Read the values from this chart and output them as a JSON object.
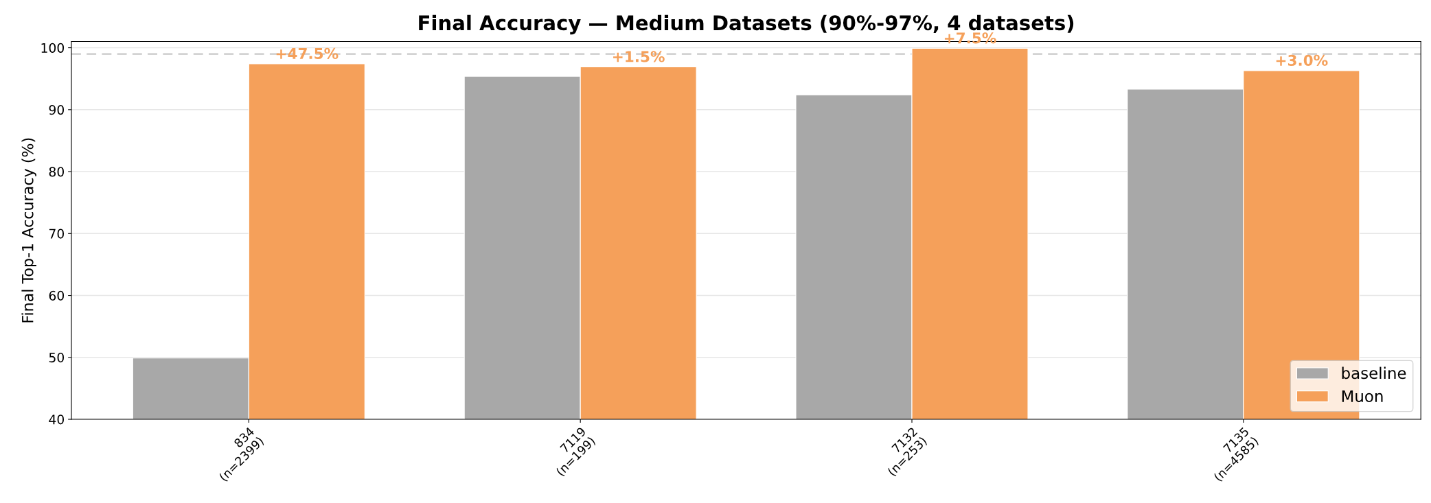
{
  "chart_data": {
    "type": "bar",
    "title": "Final Accuracy — Medium Datasets (90%-97%, 4 datasets)",
    "ylabel": "Final Top-1 Accuracy (%)",
    "categories": [
      "834\n(n=2399)",
      "7119\n(n=199)",
      "7132\n(n=253)",
      "7135\n(n=4585)"
    ],
    "series": [
      {
        "name": "baseline",
        "color": "#a8a8a8",
        "values": [
          49.9,
          95.4,
          92.4,
          93.3
        ]
      },
      {
        "name": "Muon",
        "color": "#f5a05a",
        "values": [
          97.4,
          96.9,
          99.9,
          96.3
        ]
      }
    ],
    "annotations": [
      {
        "text": "+47.5%",
        "x": "834\n(n=2399)",
        "y": 97.4
      },
      {
        "text": "+1.5%",
        "x": "7119\n(n=199)",
        "y": 96.9
      },
      {
        "text": "+7.5%",
        "x": "7132\n(n=253)",
        "y": 99.9
      },
      {
        "text": "+3.0%",
        "x": "7135\n(n=4585)",
        "y": 96.3
      }
    ],
    "ylim": [
      40,
      101
    ],
    "yticks": [
      40,
      50,
      60,
      70,
      80,
      90,
      100
    ],
    "grid": "y",
    "legend": "bottom right",
    "ref_lines": [
      {
        "axis": "y",
        "value": 99,
        "color": "#d3d3d3",
        "line_style": "dashed"
      }
    ]
  }
}
